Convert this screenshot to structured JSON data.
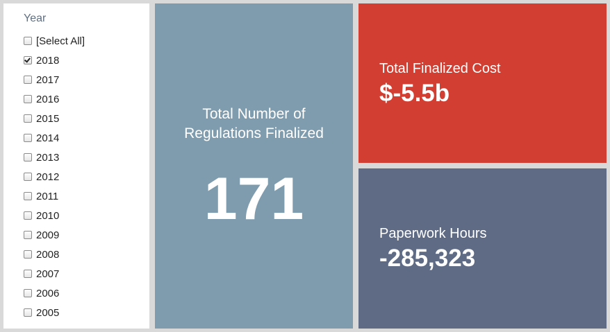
{
  "filter": {
    "title": "Year",
    "items": [
      {
        "label": "[Select All]",
        "checked": false
      },
      {
        "label": "2018",
        "checked": true
      },
      {
        "label": "2017",
        "checked": false
      },
      {
        "label": "2016",
        "checked": false
      },
      {
        "label": "2015",
        "checked": false
      },
      {
        "label": "2014",
        "checked": false
      },
      {
        "label": "2013",
        "checked": false
      },
      {
        "label": "2012",
        "checked": false
      },
      {
        "label": "2011",
        "checked": false
      },
      {
        "label": "2010",
        "checked": false
      },
      {
        "label": "2009",
        "checked": false
      },
      {
        "label": "2008",
        "checked": false
      },
      {
        "label": "2007",
        "checked": false
      },
      {
        "label": "2006",
        "checked": false
      },
      {
        "label": "2005",
        "checked": false
      }
    ]
  },
  "tiles": {
    "regulations": {
      "label": "Total Number of Regulations Finalized",
      "value": "171",
      "color": "#7f9caf"
    },
    "cost": {
      "label": "Total Finalized Cost",
      "value": "$-5.5b",
      "color": "#d23f32"
    },
    "hours": {
      "label": "Paperwork Hours",
      "value": "-285,323",
      "color": "#5f6b85"
    }
  }
}
